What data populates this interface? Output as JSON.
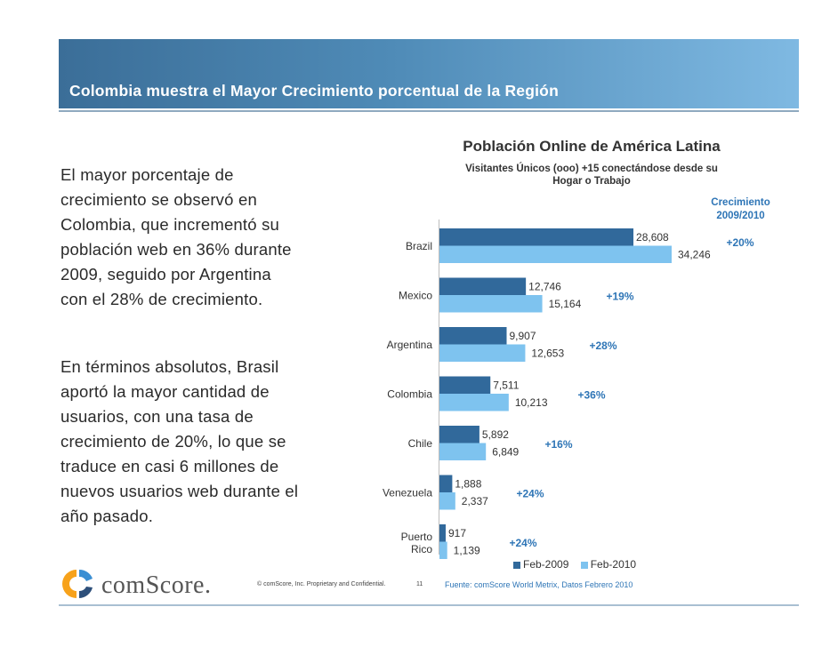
{
  "header": {
    "title": "Colombia muestra el Mayor Crecimiento porcentual de la Región"
  },
  "paragraphs": [
    [
      "El mayor porcentaje de",
      "crecimiento se observó en",
      "Colombia, que incrementó su",
      "población web en 36% durante",
      "2009, seguido por Argentina",
      "con el 28% de crecimiento."
    ],
    [
      "En términos absolutos,  Brasil",
      "aportó la mayor cantidad de",
      "usuarios, con una tasa de",
      "crecimiento de 20%, lo que se",
      "traduce en casi 6 millones de",
      "nuevos usuarios web durante el",
      "año pasado."
    ]
  ],
  "chart_data": {
    "type": "bar",
    "orientation": "horizontal",
    "title": "Población Online de América Latina",
    "subtitle": [
      "Visitantes Únicos (ooo) +15 conectándose desde su",
      "Hogar o Trabajo"
    ],
    "growth_header": [
      "Crecimiento",
      "2009/2010"
    ],
    "categories": [
      [
        "Brazil"
      ],
      [
        "Mexico"
      ],
      [
        "Argentina"
      ],
      [
        "Colombia"
      ],
      [
        "Chile"
      ],
      [
        "Venezuela"
      ],
      [
        "Puerto",
        "Rico"
      ]
    ],
    "series": [
      {
        "name": "Feb-2009",
        "color": "#31699b",
        "values": [
          28608,
          12746,
          9907,
          7511,
          5892,
          1888,
          917
        ],
        "labels": [
          "28,608",
          "12,746",
          "9,907",
          "7,511",
          "5,892",
          "1,888",
          "917"
        ]
      },
      {
        "name": "Feb-2010",
        "color": "#7ec3ef",
        "values": [
          34246,
          15164,
          12653,
          10213,
          6849,
          2337,
          1139
        ],
        "labels": [
          "34,246",
          "15,164",
          "12,653",
          "10,213",
          "6,849",
          "2,337",
          "1,139"
        ]
      }
    ],
    "growth": [
      "+20%",
      "+19%",
      "+28%",
      "+36%",
      "+16%",
      "+24%",
      "+24%"
    ],
    "xlim": [
      0,
      34246
    ]
  },
  "legend": {
    "items": [
      "Feb-2009",
      "Feb-2010"
    ]
  },
  "source": "Fuente:  comScore World Metrix, Datos Febrero 2010",
  "footer": {
    "logo_text": "comScore.",
    "copyright": "© comScore, Inc.  Proprietary and Confidential.",
    "page": "11"
  },
  "colors": {
    "growth": "#2e75b6",
    "header_start": "#3b6e98",
    "header_end": "#7fb9e2"
  }
}
